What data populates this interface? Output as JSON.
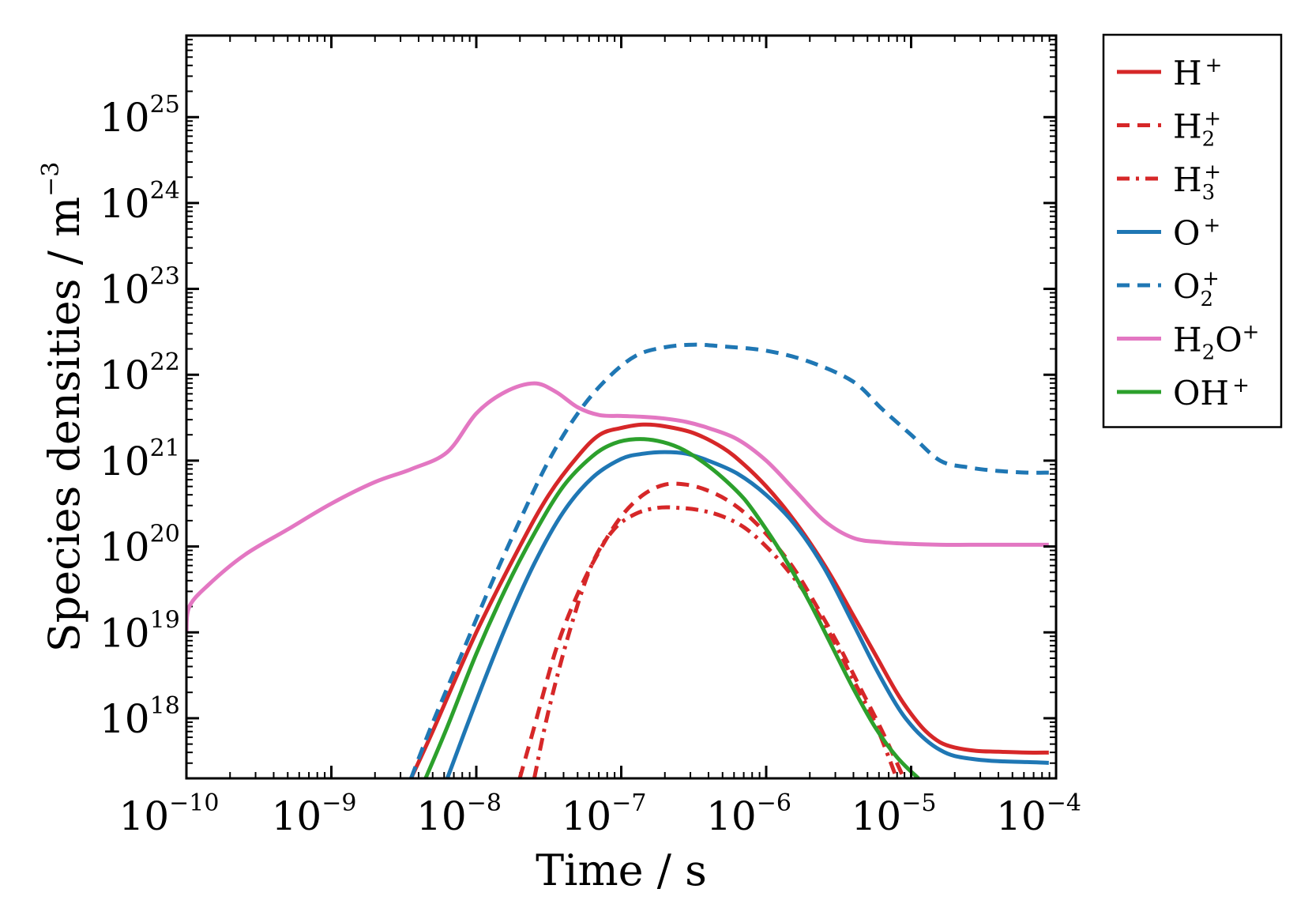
{
  "chart_data": {
    "type": "line",
    "xlabel": "Time / s",
    "ylabel_text": "Species densities / m",
    "ylabel_exponent": "−3",
    "xscale": "log",
    "yscale": "log",
    "xlim_log10": [
      -10,
      -4
    ],
    "ylim_log10": [
      17.3,
      25.95
    ],
    "x_ticks": [
      {
        "base": "10",
        "exp": "−10",
        "value": -10
      },
      {
        "base": "10",
        "exp": "−9",
        "value": -9
      },
      {
        "base": "10",
        "exp": "−8",
        "value": -8
      },
      {
        "base": "10",
        "exp": "−7",
        "value": -7
      },
      {
        "base": "10",
        "exp": "−6",
        "value": -6
      },
      {
        "base": "10",
        "exp": "−5",
        "value": -5
      },
      {
        "base": "10",
        "exp": "−4",
        "value": -4
      }
    ],
    "y_ticks": [
      {
        "base": "10",
        "exp": "18",
        "value": 18
      },
      {
        "base": "10",
        "exp": "19",
        "value": 19
      },
      {
        "base": "10",
        "exp": "20",
        "value": 20
      },
      {
        "base": "10",
        "exp": "21",
        "value": 21
      },
      {
        "base": "10",
        "exp": "22",
        "value": 22
      },
      {
        "base": "10",
        "exp": "23",
        "value": 23
      },
      {
        "base": "10",
        "exp": "24",
        "value": 24
      },
      {
        "base": "10",
        "exp": "25",
        "value": 25
      }
    ],
    "legend_position": "outside-right-top",
    "series": [
      {
        "name": "H+",
        "label_main": "H",
        "label_sub": "",
        "label_sup": "+",
        "color": "#d62728",
        "dash": "solid",
        "log_x": [
          -8.45,
          -8.3,
          -8.0,
          -7.7,
          -7.5,
          -7.3,
          -7.15,
          -7.0,
          -6.85,
          -6.7,
          -6.5,
          -6.3,
          -6.15,
          -6.0,
          -5.85,
          -5.7,
          -5.55,
          -5.4,
          -5.25,
          -5.1,
          -5.0,
          -4.9,
          -4.8,
          -4.7,
          -4.55,
          -4.4,
          -4.2,
          -4.05
        ],
        "log_y": [
          17.3,
          17.85,
          19.0,
          20.0,
          20.6,
          21.05,
          21.3,
          21.38,
          21.42,
          21.4,
          21.32,
          21.15,
          20.95,
          20.7,
          20.4,
          20.05,
          19.65,
          19.2,
          18.75,
          18.3,
          18.05,
          17.85,
          17.72,
          17.66,
          17.62,
          17.61,
          17.6,
          17.6
        ]
      },
      {
        "name": "H2+",
        "label_main": "H",
        "label_sub": "2",
        "label_sup": "+",
        "color": "#d62728",
        "dash": "dashed",
        "log_x": [
          -7.7,
          -7.6,
          -7.45,
          -7.3,
          -7.15,
          -7.0,
          -6.85,
          -6.7,
          -6.55,
          -6.4,
          -6.25,
          -6.1,
          -5.95,
          -5.8,
          -5.65,
          -5.5,
          -5.35,
          -5.2,
          -5.05
        ],
        "log_y": [
          17.3,
          17.9,
          18.8,
          19.45,
          19.95,
          20.35,
          20.6,
          20.72,
          20.72,
          20.65,
          20.52,
          20.32,
          20.05,
          19.72,
          19.3,
          18.85,
          18.35,
          17.85,
          17.3
        ]
      },
      {
        "name": "H3+",
        "label_main": "H",
        "label_sub": "3",
        "label_sup": "+",
        "color": "#d62728",
        "dash": "dashdot",
        "log_x": [
          -7.6,
          -7.5,
          -7.35,
          -7.2,
          -7.05,
          -6.9,
          -6.75,
          -6.6,
          -6.45,
          -6.3,
          -6.15,
          -6.0,
          -5.85,
          -5.7,
          -5.55,
          -5.4,
          -5.25,
          -5.1
        ],
        "log_y": [
          17.3,
          18.1,
          19.05,
          19.8,
          20.2,
          20.38,
          20.45,
          20.45,
          20.42,
          20.35,
          20.22,
          20.0,
          19.72,
          19.38,
          18.95,
          18.45,
          17.95,
          17.3
        ]
      },
      {
        "name": "O+",
        "label_main": "O",
        "label_sub": "",
        "label_sup": "+",
        "color": "#1f77b4",
        "dash": "solid",
        "log_x": [
          -8.2,
          -8.0,
          -7.8,
          -7.6,
          -7.4,
          -7.2,
          -7.0,
          -6.85,
          -6.7,
          -6.55,
          -6.4,
          -6.2,
          -6.0,
          -5.8,
          -5.6,
          -5.4,
          -5.25,
          -5.1,
          -5.0,
          -4.9,
          -4.8,
          -4.7,
          -4.55,
          -4.4,
          -4.2,
          -4.05
        ],
        "log_y": [
          17.3,
          18.2,
          19.05,
          19.8,
          20.4,
          20.8,
          21.02,
          21.08,
          21.1,
          21.08,
          21.0,
          20.85,
          20.6,
          20.25,
          19.75,
          19.1,
          18.6,
          18.15,
          17.92,
          17.75,
          17.63,
          17.56,
          17.52,
          17.5,
          17.49,
          17.48
        ]
      },
      {
        "name": "O2+",
        "label_main": "O",
        "label_sub": "2",
        "label_sup": "+",
        "color": "#1f77b4",
        "dash": "dashed",
        "log_x": [
          -8.45,
          -8.3,
          -8.1,
          -7.9,
          -7.7,
          -7.5,
          -7.3,
          -7.1,
          -6.9,
          -6.7,
          -6.5,
          -6.3,
          -6.0,
          -5.7,
          -5.4,
          -5.2,
          -5.0,
          -4.8,
          -4.6,
          -4.4,
          -4.2,
          -4.05
        ],
        "log_y": [
          17.3,
          17.95,
          18.75,
          19.55,
          20.3,
          21.0,
          21.55,
          21.95,
          22.22,
          22.32,
          22.35,
          22.33,
          22.28,
          22.15,
          21.92,
          21.6,
          21.3,
          21.0,
          20.92,
          20.88,
          20.86,
          20.86
        ]
      },
      {
        "name": "H2O+",
        "label_main": "H",
        "label_sub": "2",
        "label_sup": "+",
        "label_tail": "O",
        "color": "#e377c2",
        "dash": "solid",
        "log_x": [
          -10.0,
          -9.98,
          -9.85,
          -9.6,
          -9.3,
          -9.0,
          -8.7,
          -8.45,
          -8.2,
          -8.0,
          -7.8,
          -7.6,
          -7.45,
          -7.3,
          -7.15,
          -7.0,
          -6.85,
          -6.7,
          -6.55,
          -6.4,
          -6.2,
          -6.0,
          -5.8,
          -5.6,
          -5.4,
          -5.2,
          -5.0,
          -4.8,
          -4.6,
          -4.4,
          -4.2,
          -4.05
        ],
        "log_y": [
          19.0,
          19.3,
          19.55,
          19.9,
          20.2,
          20.5,
          20.75,
          20.9,
          21.1,
          21.55,
          21.8,
          21.9,
          21.8,
          21.62,
          21.53,
          21.52,
          21.51,
          21.49,
          21.45,
          21.38,
          21.25,
          21.0,
          20.65,
          20.3,
          20.1,
          20.05,
          20.03,
          20.02,
          20.02,
          20.02,
          20.02,
          20.02
        ]
      },
      {
        "name": "OH+",
        "label_main": "OH",
        "label_sub": "",
        "label_sup": "+",
        "color": "#2ca02c",
        "dash": "solid",
        "log_x": [
          -8.35,
          -8.2,
          -8.0,
          -7.8,
          -7.6,
          -7.4,
          -7.2,
          -7.05,
          -6.9,
          -6.75,
          -6.6,
          -6.45,
          -6.3,
          -6.15,
          -6.0,
          -5.85,
          -5.7,
          -5.55,
          -5.4,
          -5.25,
          -5.1,
          -4.95
        ],
        "log_y": [
          17.3,
          17.9,
          18.75,
          19.5,
          20.15,
          20.7,
          21.05,
          21.2,
          21.25,
          21.23,
          21.15,
          21.0,
          20.8,
          20.55,
          20.2,
          19.8,
          19.35,
          18.85,
          18.35,
          17.9,
          17.55,
          17.3
        ]
      }
    ]
  }
}
